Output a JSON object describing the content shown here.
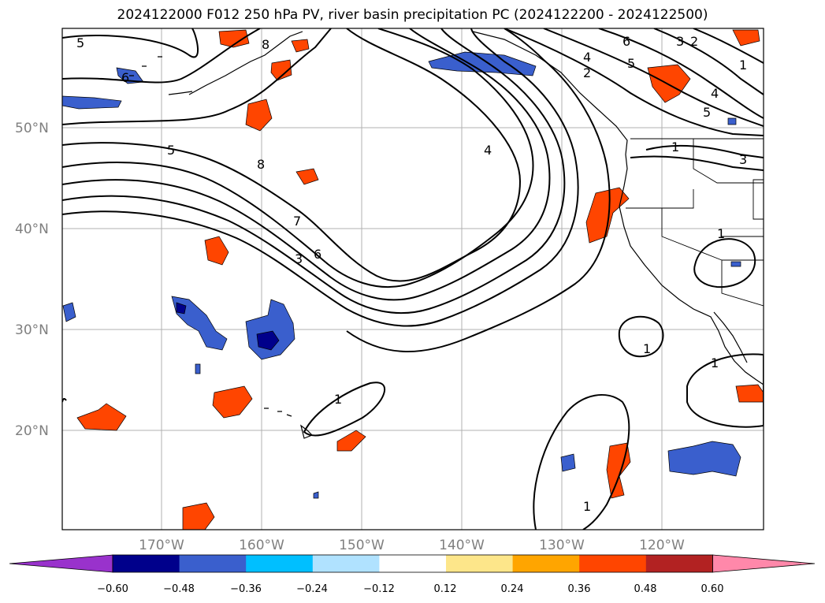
{
  "title": "2024122000 F012 250 hPa PV, river basin precipitation PC (2024122200 - 2024122500)",
  "lat_labels": [
    "50°N",
    "40°N",
    "30°N",
    "20°N"
  ],
  "lon_labels": [
    "170°W",
    "160°W",
    "150°W",
    "140°W",
    "130°W",
    "120°W"
  ],
  "colorbar": {
    "ticks": [
      "−0.60",
      "−0.48",
      "−0.36",
      "−0.24",
      "−0.12",
      "0.12",
      "0.24",
      "0.36",
      "0.48",
      "0.60"
    ],
    "colors": [
      "#9932cc",
      "#00008b",
      "#3a5fcd",
      "#00bfff",
      "#b0e2ff",
      "#ffffff",
      "#fde68a",
      "#ffa500",
      "#ff4500",
      "#b22222",
      "#ff88aa"
    ]
  },
  "contour_labels": [
    "5",
    "6",
    "8",
    "5",
    "7",
    "3",
    "6",
    "8",
    "4",
    "6",
    "4",
    "5",
    "2",
    "3",
    "2",
    "1",
    "4",
    "5",
    "1",
    "3",
    "1",
    "1",
    "1",
    "1",
    "1",
    "1"
  ]
}
